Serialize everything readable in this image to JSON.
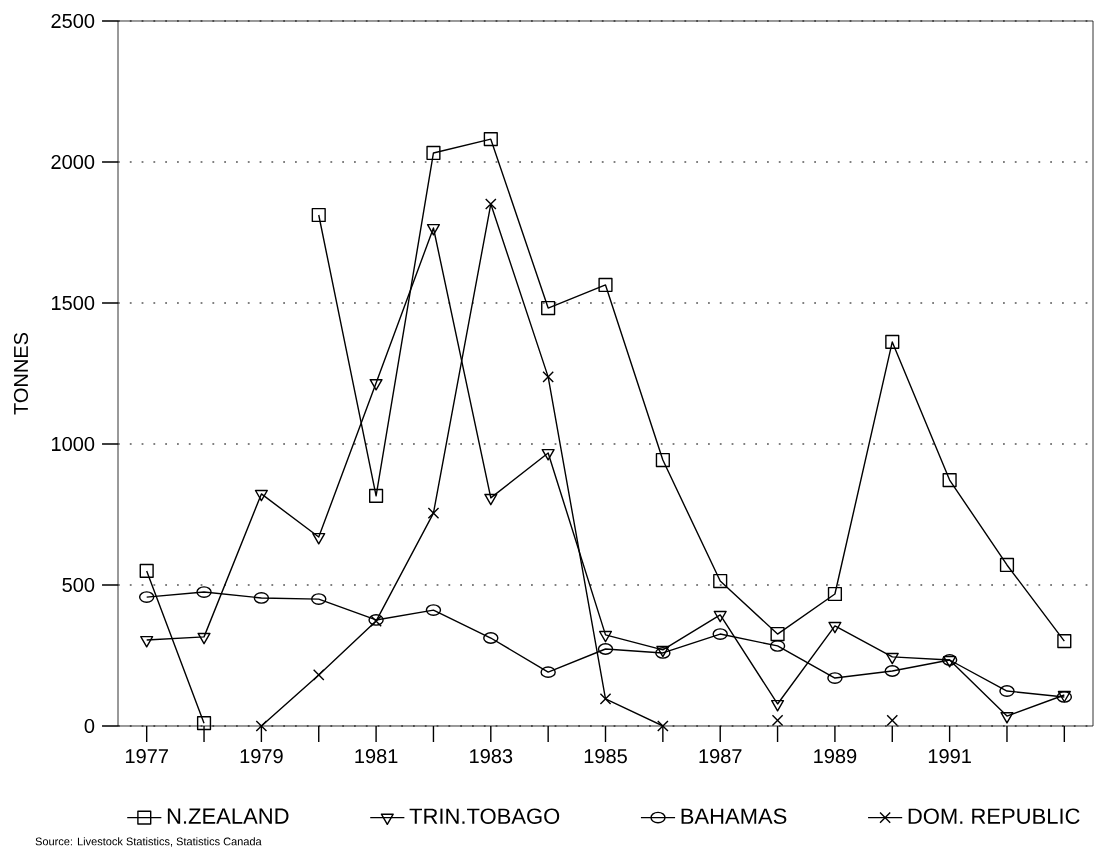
{
  "chart_data": {
    "type": "line",
    "ylabel": "TONNES",
    "annotations": [
      "Source:  Livestock Statistics, Statistics Canada"
    ],
    "x": [
      1977,
      1978,
      1979,
      1980,
      1981,
      1982,
      1983,
      1984,
      1985,
      1986,
      1987,
      1988,
      1989,
      1990,
      1991,
      1992,
      1993
    ],
    "series": [
      {
        "name": "N.ZEALAND",
        "color": "#000000",
        "marker": "square",
        "values": [
          550,
          10,
          null,
          1812,
          816,
          2032,
          2081,
          1482,
          1564,
          943,
          514,
          326,
          468,
          1362,
          872,
          571,
          301
        ]
      },
      {
        "name": "TRIN.TOBAGO",
        "color": "#000000",
        "marker": "triangle",
        "values": [
          305,
          316,
          823,
          670,
          1216,
          1766,
          809,
          968,
          323,
          270,
          394,
          78,
          355,
          245,
          234,
          35,
          110
        ]
      },
      {
        "name": "BAHAMAS",
        "color": "#000000",
        "marker": "circle",
        "values": [
          457,
          475,
          454,
          450,
          376,
          411,
          312,
          191,
          273,
          259,
          326,
          284,
          170,
          195,
          234,
          124,
          103
        ]
      },
      {
        "name": "DOM. REPUBLIC",
        "color": "#000000",
        "marker": "cross",
        "values": [
          null,
          null,
          0,
          181,
          372,
          755,
          1851,
          1238,
          96,
          0,
          null,
          20,
          null,
          20,
          null,
          null,
          null
        ]
      }
    ],
    "xlim": [
      1976.5,
      1993.5
    ],
    "ylim": [
      0,
      2500
    ],
    "xticks": [
      1977,
      {
        "value": 1978,
        "label": null
      },
      1979,
      {
        "value": 1980,
        "label": null
      },
      1981,
      {
        "value": 1982,
        "label": null
      },
      1983,
      {
        "value": 1984,
        "label": null
      },
      1985,
      {
        "value": 1986,
        "label": null
      },
      1987,
      {
        "value": 1988,
        "label": null
      },
      1989,
      {
        "value": 1990,
        "label": null
      },
      1991,
      {
        "value": 1992,
        "label": null
      },
      {
        "value": 1993,
        "label": null
      }
    ],
    "yticks": [
      0,
      500,
      1000,
      1500,
      2000,
      2500
    ],
    "grid": "y",
    "legend": "bottom",
    "line_style": "solid"
  }
}
